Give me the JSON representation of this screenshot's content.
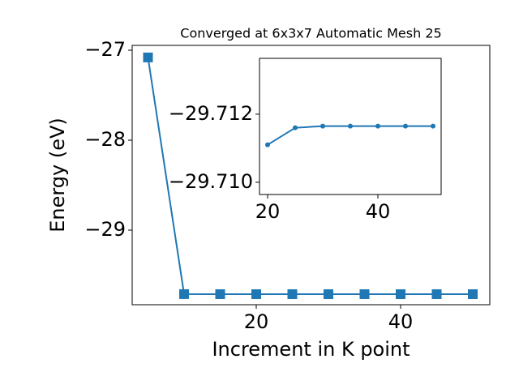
{
  "chart_data": [
    {
      "type": "line",
      "title": "Converged at 6x3x7 Automatic Mesh 25",
      "x_label": "Increment in K point",
      "y_label": "Energy (eV)",
      "x": [
        5,
        10,
        15,
        20,
        25,
        30,
        35,
        40,
        45,
        50
      ],
      "series": [
        {
          "color": "#1f77b4",
          "marker": "square",
          "values": [
            -27.08,
            -29.7111,
            -29.7116,
            -29.71165,
            -29.71165,
            -29.71165,
            -29.71165,
            -29.71165,
            -29.71165,
            -29.71165
          ]
        }
      ],
      "xlim": [
        2.81,
        52.36
      ],
      "ylim": [
        -29.829,
        -26.946
      ],
      "xticks": [
        20,
        40
      ],
      "yticks": [
        {
          "value": -27,
          "label": "−27"
        },
        {
          "value": -28,
          "label": "−28"
        },
        {
          "value": -29,
          "label": "−29"
        }
      ]
    },
    {
      "type": "line",
      "x": [
        20,
        25,
        30,
        35,
        40,
        45,
        50
      ],
      "series": [
        {
          "color": "#1f77b4",
          "marker": "circle",
          "values": [
            -29.7111,
            -29.7116,
            -29.71165,
            -29.71165,
            -29.71165,
            -29.71165,
            -29.71165
          ]
        }
      ],
      "xlim": [
        18.53,
        51.47
      ],
      "ylim": [
        -29.70964,
        -29.71364
      ],
      "xticks": [
        20,
        40
      ],
      "yticks": [
        {
          "value": -29.712,
          "label": "−29.712"
        },
        {
          "value": -29.71,
          "label": "−29.710"
        }
      ]
    }
  ]
}
